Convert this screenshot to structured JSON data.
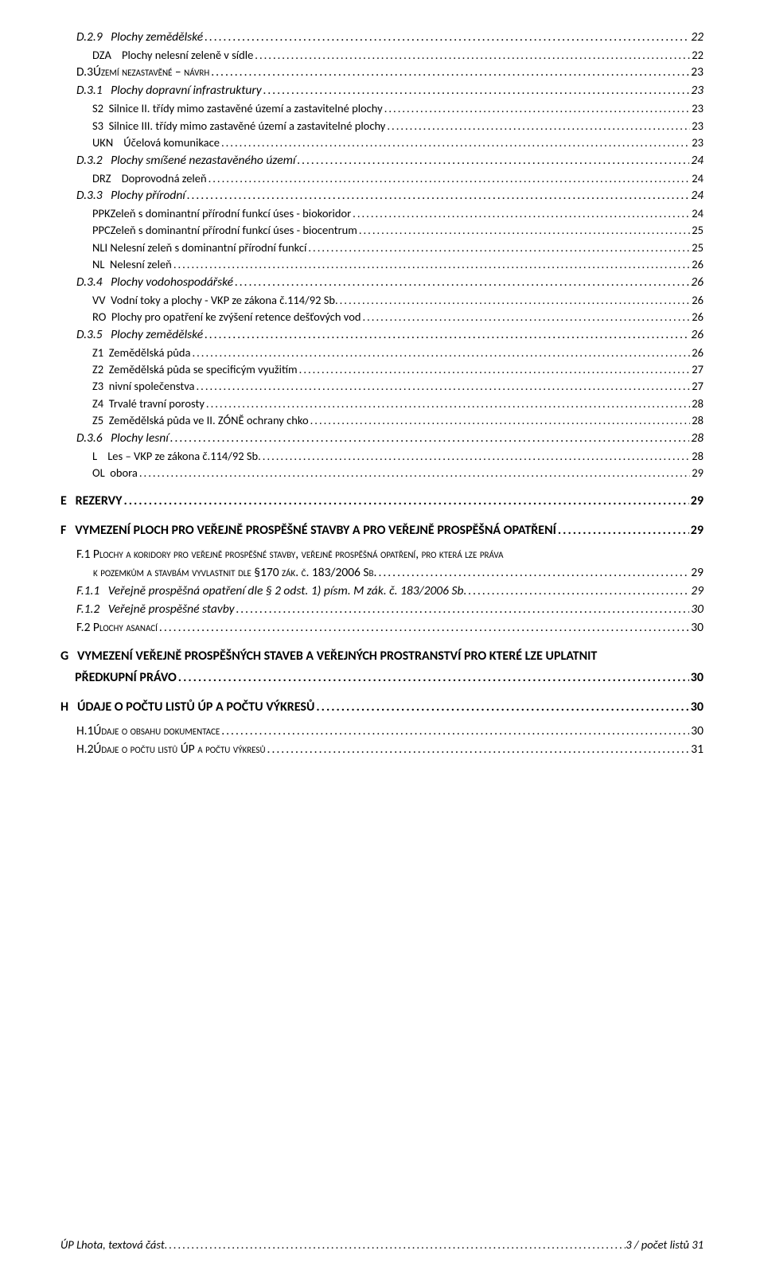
{
  "toc": [
    {
      "cls": "lvl4",
      "label": "D.2.9   Plochy zemědělské",
      "page": "22"
    },
    {
      "cls": "lvl5",
      "label": "DZA    Plochy nelesní zeleně v sídle",
      "page": "22"
    },
    {
      "cls": "lvl3sc smallcaps",
      "label": "D.3Území nezastavěné – návrh",
      "page": "23"
    },
    {
      "cls": "lvl4",
      "label": "D.3.1   Plochy dopravní infrastruktury",
      "page": "23"
    },
    {
      "cls": "lvl5",
      "label": "S2  Silnice II. třídy mimo zastavěné území a zastavitelné plochy",
      "page": "23"
    },
    {
      "cls": "lvl5",
      "label": "S3  Silnice III. třídy mimo zastavěné území a zastavitelné plochy",
      "page": "23"
    },
    {
      "cls": "lvl5",
      "label": "UKN    Účelová komunikace",
      "page": "23"
    },
    {
      "cls": "lvl4",
      "label": "D.3.2   Plochy smíšené nezastavěného území",
      "page": "24"
    },
    {
      "cls": "lvl5",
      "label": "DRZ    Doprovodná zeleň",
      "page": "24"
    },
    {
      "cls": "lvl4",
      "label": "D.3.3   Plochy přírodní",
      "page": "24"
    },
    {
      "cls": "lvl5",
      "label": "PPKZeleň s dominantní přírodní funkcí úses - biokoridor",
      "page": "24"
    },
    {
      "cls": "lvl5",
      "label": "PPCZeleň s dominantní přírodní funkcí úses - biocentrum",
      "page": "25"
    },
    {
      "cls": "lvl5",
      "label": "NLI Nelesní zeleň s dominantní přírodní funkcí",
      "page": "25"
    },
    {
      "cls": "lvl5",
      "label": "NL  Nelesní zeleň",
      "page": "26"
    },
    {
      "cls": "lvl4",
      "label": "D.3.4   Plochy vodohospodářské",
      "page": "26"
    },
    {
      "cls": "lvl5",
      "label": "VV  Vodní toky a plochy - VKP ze zákona č.114/92 Sb.",
      "page": "26"
    },
    {
      "cls": "lvl5",
      "label": "RO  Plochy pro opatření ke zvýšení retence dešťových vod",
      "page": "26"
    },
    {
      "cls": "lvl4",
      "label": "D.3.5   Plochy zemědělské",
      "page": "26"
    },
    {
      "cls": "lvl5",
      "label": "Z1  Zemědělská půda",
      "page": "26"
    },
    {
      "cls": "lvl5",
      "label": "Z2  Zemědělská půda se specificým využitím",
      "page": "27"
    },
    {
      "cls": "lvl5",
      "label": "Z3  nivní společenstva",
      "page": "27"
    },
    {
      "cls": "lvl5",
      "label": "Z4  Trvalé travní porosty",
      "page": "28"
    },
    {
      "cls": "lvl5",
      "label": "Z5  Zemědělská půda ve II. ZÓNĚ ochrany chko",
      "page": "28"
    },
    {
      "cls": "lvl4",
      "label": "D.3.6   Plochy lesní",
      "page": "28"
    },
    {
      "cls": "lvl5",
      "label": "L    Les – VKP ze zákona č.114/92 Sb.",
      "page": "28"
    },
    {
      "cls": "lvl5",
      "label": "OL  obora",
      "page": "29"
    },
    {
      "cls": "spacer-md"
    },
    {
      "cls": "lvl2",
      "label": "E   REZERVY",
      "page": "29"
    },
    {
      "cls": "spacer-md"
    },
    {
      "cls": "lvl2",
      "label": "F   VYMEZENÍ PLOCH PRO VEŘEJNĚ PROSPĚŠNÉ STAVBY A PRO VEŘEJNĚ PROSPĚŠNÁ OPATŘENÍ",
      "page": "29"
    },
    {
      "cls": "spacer-sm"
    },
    {
      "cls": "lvl3sc smallcaps",
      "label": "F.1 Plochy a koridory pro veřejně prospěšné stavby, veřejně prospěšná opatření, pro která lze práva",
      "nodots": true
    },
    {
      "cls": "lvl3sc smallcaps",
      "label": "      k pozemkům a stavbám vyvlastnit dle §170 zák. č. 183/2006 Sb.",
      "page": "29",
      "indent2": true
    },
    {
      "cls": "lvl4",
      "label": "F.1.1   Veřejně prospěšná opatření dle § 2 odst. 1) písm. M zák. č. 183/2006 Sb.",
      "page": "29"
    },
    {
      "cls": "lvl4",
      "label": "F.1.2   Veřejně prospěšné stavby",
      "page": "30"
    },
    {
      "cls": "lvl3sc smallcaps",
      "label": "F.2 Plochy asanací",
      "page": "30"
    },
    {
      "cls": "spacer-md"
    },
    {
      "cls": "lvl2",
      "label": "G   VYMEZENÍ VEŘEJNĚ PROSPĚŠNÝCH STAVEB A VEŘEJNÝCH PROSTRANSTVÍ PRO KTERÉ LZE UPLATNIT",
      "nodots": true
    },
    {
      "cls": "lvl2",
      "label": "     PŘEDKUPNÍ PRÁVO",
      "page": "30",
      "indent2": true
    },
    {
      "cls": "spacer-md"
    },
    {
      "cls": "lvl2",
      "label": "H   ÚDAJE O POČTU LISTŮ ÚP A POČTU VÝKRESŮ",
      "page": "30"
    },
    {
      "cls": "spacer-sm"
    },
    {
      "cls": "lvl3sc smallcaps",
      "label": "H.1Údaje o obsahu dokumentace",
      "page": "30"
    },
    {
      "cls": "lvl3sc smallcaps",
      "label": "H.2Údaje o počtu listů ÚP a počtu výkresů",
      "page": "31"
    }
  ],
  "footer": {
    "left": "ÚP Lhota, textová část",
    "right": "3 / počet listů 31"
  }
}
